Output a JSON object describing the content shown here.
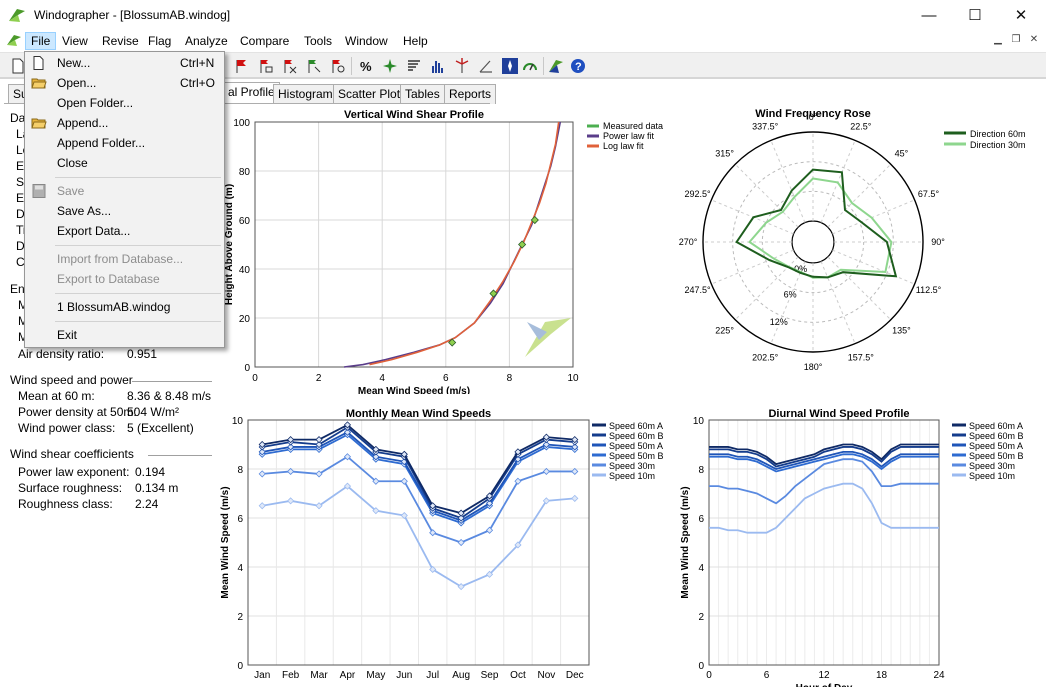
{
  "window": {
    "title": "Windographer - [BlossumAB.windog]",
    "minimize_glyph": "—",
    "maximize_glyph": "☐",
    "close_glyph": "✕"
  },
  "menubar": {
    "items": [
      "File",
      "View",
      "Revise",
      "Flag",
      "Analyze",
      "Compare",
      "Tools",
      "Window",
      "Help"
    ],
    "active": "File"
  },
  "tabs": {
    "items": [
      "Su",
      "al Profile",
      "Histogram",
      "Scatter Plot",
      "Tables",
      "Reports"
    ],
    "selected": "al Profile"
  },
  "left_panel": {
    "truncated_labels": [
      "Da",
      "La",
      "Lo",
      "El",
      "St",
      "En",
      "D",
      "Ti",
      "D",
      "Ca",
      "Ent",
      "M",
      "M",
      "M"
    ],
    "air_density_label": "Air density ratio:",
    "air_density_value": "0.951",
    "power_section": "Wind speed and power",
    "mean_label": "Mean at 60 m:",
    "mean_value": "8.36 & 8.48 m/s",
    "power_density_label": "Power density at 50m:",
    "power_density_value": "504 W/m²",
    "power_class_label": "Wind power class:",
    "power_class_value": "5  (Excellent)",
    "shear_section": "Wind shear coefficients",
    "exponent_label": "Power law exponent:",
    "exponent_value": "0.194",
    "roughness_label": "Surface roughness:",
    "roughness_value": "0.134 m",
    "roughness_class_label": "Roughness class:",
    "roughness_class_value": "2.24"
  },
  "file_menu": {
    "items": [
      {
        "label": "New...",
        "shortcut": "Ctrl+N",
        "icon": "new-file-icon",
        "enabled": true
      },
      {
        "label": "Open...",
        "shortcut": "Ctrl+O",
        "icon": "open-folder-icon",
        "enabled": true
      },
      {
        "label": "Open Folder...",
        "shortcut": "",
        "icon": "",
        "enabled": true
      },
      {
        "label": "Append...",
        "shortcut": "",
        "icon": "append-folder-icon",
        "enabled": true
      },
      {
        "label": "Append Folder...",
        "shortcut": "",
        "icon": "",
        "enabled": true
      },
      {
        "label": "Close",
        "shortcut": "",
        "icon": "",
        "enabled": true
      },
      {
        "label": "Save",
        "shortcut": "",
        "icon": "save-disk-icon",
        "enabled": false
      },
      {
        "label": "Save As...",
        "shortcut": "",
        "icon": "",
        "enabled": true
      },
      {
        "label": "Export Data...",
        "shortcut": "",
        "icon": "",
        "enabled": true
      },
      {
        "label": "Import from Database...",
        "shortcut": "",
        "icon": "",
        "enabled": false
      },
      {
        "label": "Export to Database",
        "shortcut": "",
        "icon": "",
        "enabled": false
      },
      {
        "label": "1 BlossumAB.windog",
        "shortcut": "",
        "icon": "",
        "enabled": true
      },
      {
        "label": "Exit",
        "shortcut": "",
        "icon": "",
        "enabled": true
      }
    ]
  },
  "charts": {
    "shear": {
      "title": "Vertical Wind Shear Profile",
      "xlabel": "Mean Wind Speed (m/s)",
      "ylabel": "Height Above Ground (m)",
      "xlim": [
        0,
        10
      ],
      "ylim": [
        0,
        100
      ],
      "xticks": [
        "0",
        "2",
        "4",
        "6",
        "8",
        "10"
      ],
      "yticks": [
        "0",
        "20",
        "40",
        "60",
        "80",
        "100"
      ],
      "legend": [
        "Measured data",
        "Power law fit",
        "Log law fit"
      ],
      "colors": [
        "#4caf50",
        "#5a3d8a",
        "#e0613a"
      ],
      "measured": [
        [
          6.2,
          10
        ],
        [
          7.5,
          30
        ],
        [
          8.4,
          50
        ],
        [
          8.8,
          60
        ]
      ],
      "power_fit": [
        [
          2.8,
          0
        ],
        [
          3.4,
          1
        ],
        [
          4.1,
          3
        ],
        [
          5.0,
          6
        ],
        [
          5.8,
          9
        ],
        [
          6.3,
          12
        ],
        [
          6.9,
          18
        ],
        [
          7.4,
          26
        ],
        [
          7.8,
          34
        ],
        [
          8.1,
          42
        ],
        [
          8.4,
          50
        ],
        [
          8.7,
          58
        ],
        [
          8.9,
          66
        ],
        [
          9.1,
          74
        ],
        [
          9.3,
          82
        ],
        [
          9.45,
          90
        ],
        [
          9.6,
          100
        ]
      ],
      "log_fit": [
        [
          3.6,
          1
        ],
        [
          4.3,
          3
        ],
        [
          5.1,
          6
        ],
        [
          5.8,
          9
        ],
        [
          6.3,
          12
        ],
        [
          6.9,
          18
        ],
        [
          7.4,
          27
        ],
        [
          7.8,
          35
        ],
        [
          8.15,
          43
        ],
        [
          8.45,
          51
        ],
        [
          8.7,
          59
        ],
        [
          8.95,
          67
        ],
        [
          9.15,
          75
        ],
        [
          9.3,
          83
        ],
        [
          9.45,
          91
        ],
        [
          9.55,
          100
        ]
      ]
    },
    "rose": {
      "title": "Wind Frequency Rose",
      "directions": [
        "0°",
        "22.5°",
        "45°",
        "67.5°",
        "90°",
        "112.5°",
        "135°",
        "157.5°",
        "180°",
        "202.5°",
        "225°",
        "247.5°",
        "270°",
        "292.5°",
        "315°",
        "337.5°"
      ],
      "ring_labels": [
        "0%",
        "6%",
        "12%"
      ],
      "series": [
        {
          "name": "Direction 60m",
          "color": "#1e5e1e",
          "values": [
            10.4,
            11.0,
            4.9,
            6.3,
            10.7,
            13.9,
            4.4,
            3.5,
            2.8,
            2.5,
            2.9,
            5.3,
            11.2,
            8.8,
            4.9,
            7.0
          ]
        },
        {
          "name": "Direction 30m",
          "color": "#8ed68e",
          "values": [
            8.6,
            8.8,
            6.9,
            8.6,
            11.6,
            11.6,
            3.7,
            3.5,
            3.0,
            2.3,
            2.8,
            4.4,
            8.6,
            6.0,
            4.4,
            5.6
          ]
        }
      ]
    },
    "monthly": {
      "title": "Monthly Mean Wind Speeds",
      "ylabel": "Mean Wind Speed (m/s)",
      "categories": [
        "Jan",
        "Feb",
        "Mar",
        "Apr",
        "May",
        "Jun",
        "Jul",
        "Aug",
        "Sep",
        "Oct",
        "Nov",
        "Dec"
      ],
      "ylim": [
        0,
        10
      ],
      "yticks": [
        "0",
        "2",
        "4",
        "6",
        "8",
        "10"
      ],
      "series": [
        {
          "name": "Speed 60m A",
          "color": "#0f2a66",
          "values": [
            9.0,
            9.2,
            9.2,
            9.8,
            8.8,
            8.6,
            6.5,
            6.2,
            6.9,
            8.7,
            9.3,
            9.2
          ]
        },
        {
          "name": "Speed 60m B",
          "color": "#143c8c",
          "values": [
            8.9,
            9.1,
            9.0,
            9.7,
            8.7,
            8.5,
            6.4,
            6.0,
            6.8,
            8.6,
            9.2,
            9.1
          ]
        },
        {
          "name": "Speed 50m A",
          "color": "#1f55b8",
          "values": [
            8.7,
            8.9,
            8.9,
            9.5,
            8.5,
            8.3,
            6.3,
            5.9,
            6.6,
            8.4,
            9.0,
            8.9
          ]
        },
        {
          "name": "Speed 50m B",
          "color": "#2e6bd1",
          "values": [
            8.6,
            8.8,
            8.8,
            9.4,
            8.4,
            8.2,
            6.2,
            5.8,
            6.5,
            8.3,
            8.9,
            8.8
          ]
        },
        {
          "name": "Speed 30m",
          "color": "#5a8ae0",
          "values": [
            7.8,
            7.9,
            7.8,
            8.5,
            7.5,
            7.5,
            5.4,
            5.0,
            5.5,
            7.5,
            7.9,
            7.9
          ]
        },
        {
          "name": "Speed 10m",
          "color": "#9bbaf0",
          "values": [
            6.5,
            6.7,
            6.5,
            7.3,
            6.3,
            6.1,
            3.9,
            3.2,
            3.7,
            4.9,
            6.7,
            6.8
          ]
        }
      ]
    },
    "diurnal": {
      "title": "Diurnal Wind Speed Profile",
      "xlabel": "Hour of Day",
      "ylabel": "Mean Wind Speed (m/s)",
      "xlim": [
        0,
        24
      ],
      "ylim": [
        0,
        10
      ],
      "xticks": [
        "0",
        "6",
        "12",
        "18",
        "24"
      ],
      "yticks": [
        "0",
        "2",
        "4",
        "6",
        "8",
        "10"
      ],
      "hours": [
        0,
        1,
        2,
        3,
        4,
        5,
        6,
        7,
        8,
        9,
        10,
        11,
        12,
        13,
        14,
        15,
        16,
        17,
        18,
        19,
        20,
        21,
        22,
        23,
        24
      ],
      "series": [
        {
          "name": "Speed 60m A",
          "color": "#0f2a66",
          "values": [
            8.9,
            8.9,
            8.9,
            8.8,
            8.8,
            8.7,
            8.5,
            8.2,
            8.3,
            8.4,
            8.5,
            8.6,
            8.8,
            8.9,
            9.0,
            9.0,
            8.9,
            8.7,
            8.4,
            8.8,
            9.0,
            9.0,
            9.0,
            9.0,
            9.0
          ]
        },
        {
          "name": "Speed 60m B",
          "color": "#143c8c",
          "values": [
            8.8,
            8.8,
            8.8,
            8.7,
            8.7,
            8.6,
            8.4,
            8.1,
            8.2,
            8.3,
            8.4,
            8.5,
            8.7,
            8.8,
            8.9,
            8.9,
            8.8,
            8.6,
            8.3,
            8.7,
            8.9,
            8.9,
            8.9,
            8.9,
            8.9
          ]
        },
        {
          "name": "Speed 50m A",
          "color": "#1f55b8",
          "values": [
            8.6,
            8.6,
            8.6,
            8.5,
            8.5,
            8.4,
            8.2,
            8.0,
            8.1,
            8.2,
            8.3,
            8.4,
            8.5,
            8.6,
            8.7,
            8.7,
            8.6,
            8.4,
            8.1,
            8.4,
            8.6,
            8.6,
            8.6,
            8.6,
            8.6
          ]
        },
        {
          "name": "Speed 50m B",
          "color": "#2e6bd1",
          "values": [
            8.5,
            8.5,
            8.5,
            8.4,
            8.4,
            8.3,
            8.1,
            7.9,
            8.0,
            8.1,
            8.2,
            8.3,
            8.4,
            8.5,
            8.6,
            8.6,
            8.5,
            8.3,
            8.0,
            8.3,
            8.5,
            8.5,
            8.5,
            8.5,
            8.5
          ]
        },
        {
          "name": "Speed 30m",
          "color": "#5a8ae0",
          "values": [
            7.3,
            7.3,
            7.2,
            7.2,
            7.1,
            7.0,
            6.8,
            6.6,
            6.9,
            7.3,
            7.6,
            7.9,
            8.2,
            8.3,
            8.4,
            8.4,
            8.3,
            7.9,
            7.3,
            7.3,
            7.4,
            7.4,
            7.4,
            7.4,
            7.4
          ]
        },
        {
          "name": "Speed 10m",
          "color": "#9bbaf0",
          "values": [
            5.6,
            5.6,
            5.5,
            5.5,
            5.4,
            5.4,
            5.4,
            5.6,
            6.0,
            6.4,
            6.8,
            7.0,
            7.2,
            7.3,
            7.4,
            7.4,
            7.2,
            6.6,
            5.8,
            5.6,
            5.6,
            5.6,
            5.6,
            5.6,
            5.6
          ]
        }
      ]
    }
  }
}
